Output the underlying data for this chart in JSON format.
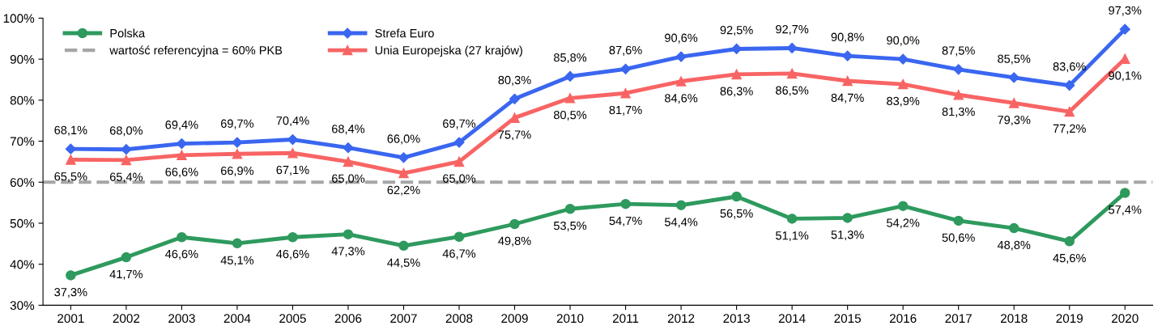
{
  "chart_data": {
    "type": "line",
    "categories": [
      "2001",
      "2002",
      "2003",
      "2004",
      "2005",
      "2006",
      "2007",
      "2008",
      "2009",
      "2010",
      "2011",
      "2012",
      "2013",
      "2014",
      "2015",
      "2016",
      "2017",
      "2018",
      "2019",
      "2020"
    ],
    "series": [
      {
        "name": "Polska",
        "color": "#2e9a5e",
        "marker": "circle",
        "values": [
          37.3,
          41.7,
          46.6,
          45.1,
          46.6,
          47.3,
          44.5,
          46.7,
          49.8,
          53.5,
          54.7,
          54.4,
          56.5,
          51.1,
          51.3,
          54.2,
          50.6,
          48.8,
          45.6,
          57.4
        ],
        "value_labels": [
          "37,3%",
          "41,7%",
          "46,6%",
          "45,1%",
          "46,6%",
          "47,3%",
          "44,5%",
          "46,7%",
          "49,8%",
          "53,5%",
          "54,7%",
          "54,4%",
          "56,5%",
          "51,1%",
          "51,3%",
          "54,2%",
          "50,6%",
          "48,8%",
          "45,6%",
          "57,4%"
        ]
      },
      {
        "name": "Strefa Euro",
        "color": "#3a66f0",
        "marker": "diamond",
        "values": [
          68.1,
          68.0,
          69.4,
          69.7,
          70.4,
          68.4,
          66.0,
          69.7,
          80.3,
          85.8,
          87.6,
          90.6,
          92.5,
          92.7,
          90.8,
          90.0,
          87.5,
          85.5,
          83.6,
          97.3
        ],
        "value_labels": [
          "68,1%",
          "68,0%",
          "69,4%",
          "69,7%",
          "70,4%",
          "68,4%",
          "66,0%",
          "69,7%",
          "80,3%",
          "85,8%",
          "87,6%",
          "90,6%",
          "92,5%",
          "92,7%",
          "90,8%",
          "90,0%",
          "87,5%",
          "85,5%",
          "83,6%",
          "97,3%"
        ]
      },
      {
        "name": "Unia Europejska (27 krajów)",
        "color": "#f86464",
        "marker": "triangle",
        "values": [
          65.5,
          65.4,
          66.6,
          66.9,
          67.1,
          65.0,
          62.2,
          65.0,
          75.7,
          80.5,
          81.7,
          84.6,
          86.3,
          86.5,
          84.7,
          83.9,
          81.3,
          79.3,
          77.2,
          90.1
        ],
        "value_labels": [
          "65,5%",
          "65,4%",
          "66,6%",
          "66,9%",
          "67,1%",
          "65,0%",
          "62,2%",
          "65,0%",
          "75,7%",
          "80,5%",
          "81,7%",
          "84,6%",
          "86,3%",
          "86,5%",
          "84,7%",
          "83,9%",
          "81,3%",
          "79,3%",
          "77,2%",
          "90,1%"
        ]
      }
    ],
    "ref_lines": [
      {
        "axis": "y",
        "value": 60,
        "label": "wartość referencyjna = 60% PKB",
        "color": "#a6a6a6",
        "line_style": "dashed"
      }
    ],
    "ylim": [
      30,
      100
    ],
    "yticks": [
      {
        "value": 30,
        "label": "30%"
      },
      {
        "value": 40,
        "label": "40%"
      },
      {
        "value": 50,
        "label": "50%"
      },
      {
        "value": 60,
        "label": "60%"
      },
      {
        "value": 70,
        "label": "70%"
      },
      {
        "value": 80,
        "label": "80%"
      },
      {
        "value": 90,
        "label": "90%"
      },
      {
        "value": 100,
        "label": "100%"
      }
    ],
    "grid": false,
    "legend": "top left"
  }
}
